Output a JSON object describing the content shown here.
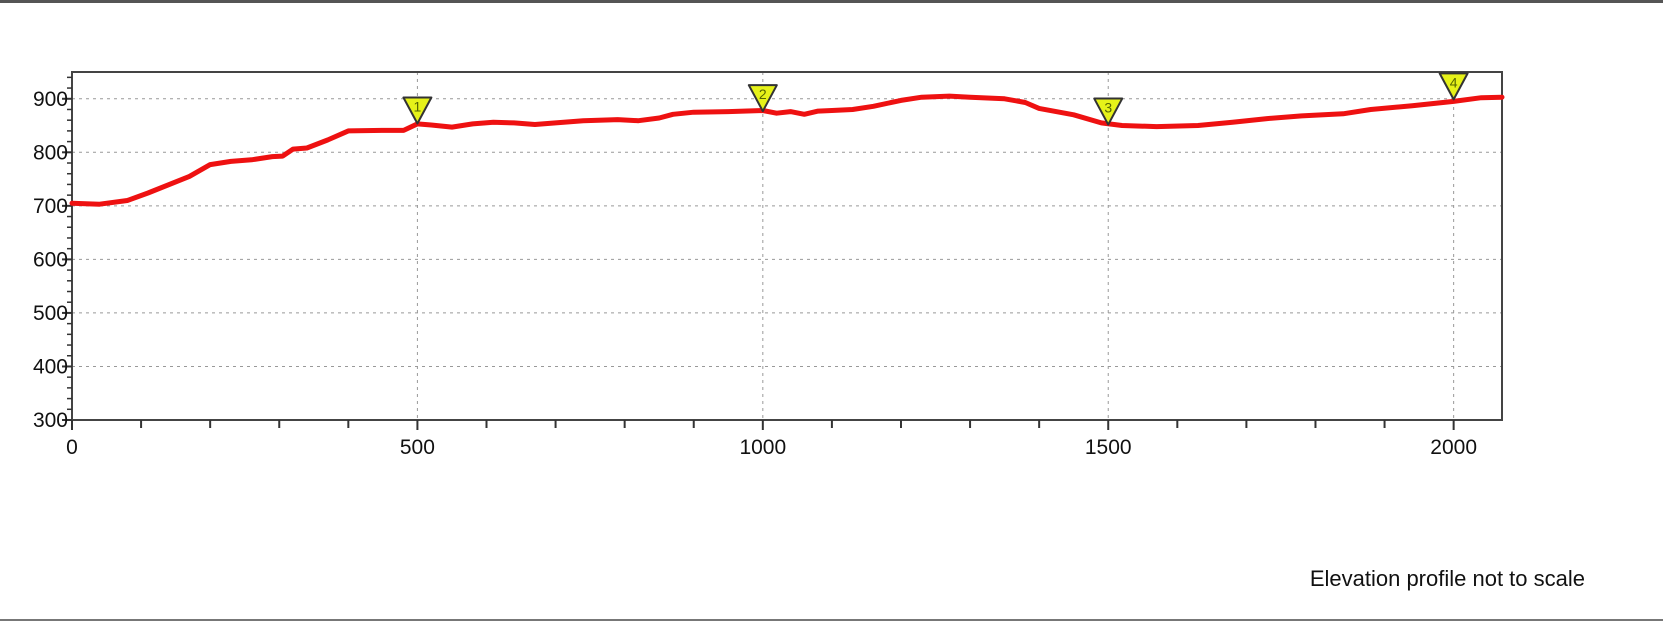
{
  "chart_data": {
    "type": "line",
    "title": "",
    "xlabel": "",
    "ylabel": "",
    "xlim": [
      0,
      2070
    ],
    "ylim": [
      300,
      950
    ],
    "x_ticks": [
      0,
      500,
      1000,
      1500,
      2000
    ],
    "y_ticks": [
      300,
      400,
      500,
      600,
      700,
      800,
      900
    ],
    "grid": true,
    "series": [
      {
        "color": "#ee1111",
        "x": [
          0,
          40,
          80,
          110,
          170,
          200,
          230,
          260,
          290,
          305,
          320,
          340,
          370,
          400,
          450,
          480,
          500,
          520,
          550,
          580,
          610,
          640,
          670,
          700,
          740,
          790,
          820,
          850,
          870,
          900,
          950,
          1000,
          1020,
          1040,
          1060,
          1080,
          1100,
          1130,
          1160,
          1200,
          1230,
          1270,
          1300,
          1350,
          1380,
          1400,
          1450,
          1490,
          1520,
          1570,
          1630,
          1680,
          1730,
          1780,
          1840,
          1880,
          1940,
          2000,
          2040,
          2070
        ],
        "y": [
          705,
          703,
          710,
          724,
          755,
          777,
          783,
          786,
          792,
          793,
          806,
          808,
          823,
          840,
          841,
          841,
          853,
          851,
          847,
          853,
          856,
          855,
          852,
          855,
          859,
          861,
          859,
          864,
          871,
          875,
          876,
          878,
          873,
          876,
          871,
          877,
          878,
          880,
          886,
          897,
          903,
          905,
          903,
          900,
          893,
          882,
          870,
          855,
          850,
          848,
          850,
          856,
          863,
          868,
          872,
          880,
          887,
          895,
          902,
          903
        ]
      }
    ],
    "markers": [
      {
        "label": "1",
        "x": 500,
        "y": 880
      },
      {
        "label": "2",
        "x": 1000,
        "y": 903
      },
      {
        "label": "3",
        "x": 1500,
        "y": 878
      },
      {
        "label": "4",
        "x": 2000,
        "y": 925
      }
    ]
  },
  "footer_note": "Elevation profile not to scale"
}
